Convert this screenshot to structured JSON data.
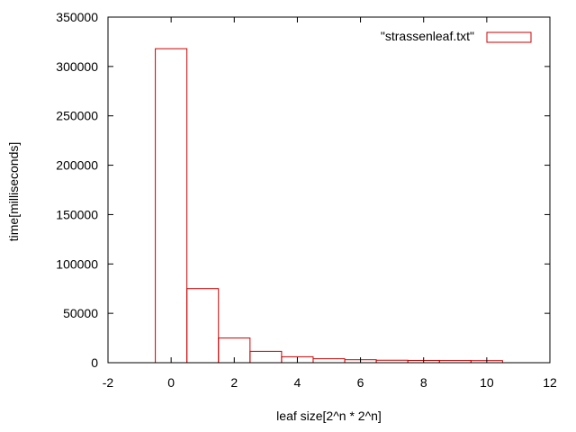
{
  "chart_data": {
    "type": "bar",
    "title": "",
    "xlabel": "leaf size[2^n * 2^n]",
    "ylabel": "time[milliseconds]",
    "xlim": [
      -2,
      12
    ],
    "ylim": [
      0,
      350000
    ],
    "xticks": [
      -2,
      0,
      2,
      4,
      6,
      8,
      10,
      12
    ],
    "yticks": [
      0,
      50000,
      100000,
      150000,
      200000,
      250000,
      300000,
      350000
    ],
    "bar_width": 1,
    "grid": false,
    "legend_position": "top-right",
    "series": [
      {
        "name": "\"strassenleaf.txt\"",
        "color": "#cc0000",
        "x": [
          0,
          1,
          2,
          3,
          4,
          5,
          6,
          7,
          8,
          9,
          10
        ],
        "values": [
          318000,
          75000,
          25000,
          11500,
          6000,
          4000,
          3000,
          2500,
          2300,
          2200,
          2100
        ]
      }
    ]
  }
}
